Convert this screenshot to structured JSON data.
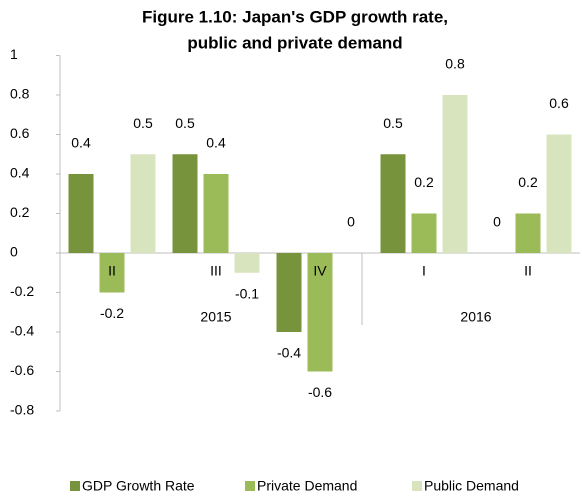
{
  "chart_data": {
    "type": "bar",
    "title": [
      "Figure 1.10: Japan's GDP growth rate,",
      "public and private demand"
    ],
    "categories": [
      "II",
      "III",
      "IV",
      "I",
      "II"
    ],
    "year_labels": [
      "2015",
      "2016"
    ],
    "series": [
      {
        "name": "GDP Growth Rate",
        "color": "#77933c",
        "values": [
          0.4,
          0.5,
          -0.4,
          0.5,
          0
        ]
      },
      {
        "name": "Private Demand",
        "color": "#9bbb59",
        "values": [
          -0.2,
          0.4,
          -0.6,
          0.2,
          0.2
        ]
      },
      {
        "name": "Public Demand",
        "color": "#d7e4bd",
        "values": [
          0.5,
          -0.1,
          0,
          0.8,
          0.6
        ]
      }
    ],
    "ylim": [
      -0.8,
      1
    ],
    "yticks": [
      1,
      0.8,
      0.6,
      0.4,
      0.2,
      0,
      -0.2,
      -0.4,
      -0.6,
      -0.8
    ],
    "legend": "bottom"
  }
}
